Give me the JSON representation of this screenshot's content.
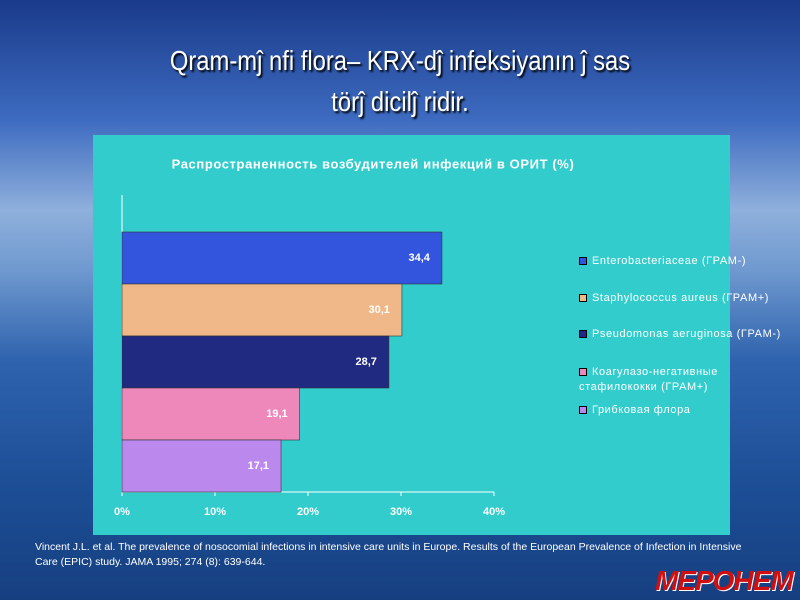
{
  "slide_title": [
    "Qram-mĵ nfi flora– KRX-dĵ  infeksiyanın ĵ sas",
    "törĵ dicilĵ ridir."
  ],
  "chart_data": {
    "type": "bar",
    "orientation": "horizontal",
    "title": "Распространенность возбудителей инфекций в ОРИТ (%)",
    "series": [
      {
        "name": "Enterobacteriaceae (ГРАМ-)",
        "color": "#3355dd",
        "values": [
          34.4
        ],
        "value_labels": [
          "34,4"
        ]
      },
      {
        "name": "Staphylococcus aureus (ГРАМ+)",
        "color": "#f0b888",
        "values": [
          30.1
        ],
        "value_labels": [
          "30,1"
        ]
      },
      {
        "name": "Pseudomonas aeruginosa (ГРАМ-)",
        "color": "#1f2a80",
        "values": [
          28.7
        ],
        "value_labels": [
          "28,7"
        ]
      },
      {
        "name": "Коагулазо-негативные стафилококки (ГРАМ+)",
        "color": "#ee88bb",
        "values": [
          19.1
        ],
        "value_labels": [
          "19,1"
        ]
      },
      {
        "name": "Грибковая флора",
        "color": "#bb88ee",
        "values": [
          17.1
        ],
        "value_labels": [
          "17,1"
        ]
      }
    ],
    "xlim": [
      0,
      40
    ],
    "xticks": [
      {
        "value": 0,
        "label": "0%"
      },
      {
        "value": 10,
        "label": "10%"
      },
      {
        "value": 20,
        "label": "20%"
      },
      {
        "value": 30,
        "label": "30%"
      },
      {
        "value": 40,
        "label": "40%"
      }
    ]
  },
  "citation": "Vincent J.L. et al. The prevalence of nosocomial infections in intensive care units in Europe. Results of the European Prevalence of Infection in Intensive Care (EPIC) study. JAMA 1995; 274 (8): 639-644.",
  "logo": "МЕРОНЕМ"
}
